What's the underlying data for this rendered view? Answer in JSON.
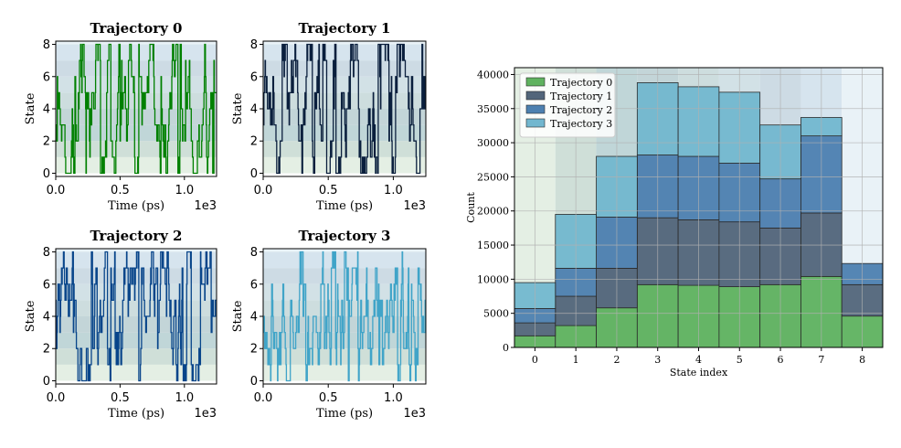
{
  "chart_data": [
    {
      "type": "line",
      "title": "Trajectory 0",
      "xlabel": "Time (ps)",
      "ylabel": "State",
      "x_offset_label": "1e3",
      "xlim": [
        0,
        1.25
      ],
      "ylim": [
        -0.2,
        8.2
      ],
      "xticks": [
        "0.0",
        "0.5",
        "1.0"
      ],
      "yticks": [
        "0",
        "2",
        "4",
        "6",
        "8"
      ],
      "color": "#008000",
      "seed": 11
    },
    {
      "type": "line",
      "title": "Trajectory 1",
      "xlabel": "Time (ps)",
      "ylabel": "State",
      "x_offset_label": "1e3",
      "xlim": [
        0,
        1.25
      ],
      "ylim": [
        -0.2,
        8.2
      ],
      "xticks": [
        "0.0",
        "0.5",
        "1.0"
      ],
      "yticks": [
        "0",
        "2",
        "4",
        "6",
        "8"
      ],
      "color": "#0a1f3d",
      "seed": 23
    },
    {
      "type": "line",
      "title": "Trajectory 2",
      "xlabel": "Time (ps)",
      "ylabel": "State",
      "x_offset_label": "1e3",
      "xlim": [
        0,
        1.25
      ],
      "ylim": [
        -0.2,
        8.2
      ],
      "xticks": [
        "0.0",
        "0.5",
        "1.0"
      ],
      "yticks": [
        "0",
        "2",
        "4",
        "6",
        "8"
      ],
      "color": "#08458a",
      "seed": 37
    },
    {
      "type": "line",
      "title": "Trajectory 3",
      "xlabel": "Time (ps)",
      "ylabel": "State",
      "x_offset_label": "1e3",
      "xlim": [
        0,
        1.25
      ],
      "ylim": [
        -0.2,
        8.2
      ],
      "xticks": [
        "0.0",
        "0.5",
        "1.0"
      ],
      "yticks": [
        "0",
        "2",
        "4",
        "6",
        "8"
      ],
      "color": "#40a4c8",
      "seed": 53
    },
    {
      "type": "bar",
      "stacked": true,
      "xlabel": "State index",
      "ylabel": "Count",
      "categories": [
        "0",
        "1",
        "2",
        "3",
        "4",
        "5",
        "6",
        "7",
        "8"
      ],
      "ylim": [
        0,
        41000
      ],
      "yticks": [
        0,
        5000,
        10000,
        15000,
        20000,
        25000,
        30000,
        35000,
        40000
      ],
      "grid": true,
      "legend_position": "top-left",
      "series": [
        {
          "name": "Trajectory 0",
          "color": "#5fb25f",
          "values": [
            1700,
            3200,
            5800,
            9200,
            9100,
            8900,
            9200,
            10400,
            4600
          ]
        },
        {
          "name": "Trajectory 1",
          "color": "#52657a",
          "values": [
            1900,
            4300,
            5800,
            9800,
            9600,
            9500,
            8300,
            9300,
            4600
          ]
        },
        {
          "name": "Trajectory 2",
          "color": "#4d80b0",
          "values": [
            2100,
            4100,
            7500,
            9200,
            9300,
            8600,
            7200,
            11300,
            3100
          ]
        },
        {
          "name": "Trajectory 3",
          "color": "#72b7cf",
          "values": [
            3800,
            7900,
            8900,
            10600,
            10200,
            10400,
            7900,
            2700,
            0
          ]
        }
      ]
    }
  ],
  "state_band_colors": [
    "#e4efe4",
    "#cfdfd8",
    "#c0d6d8",
    "#c3d5d8",
    "#cdddde",
    "#d2e1e6",
    "#cddbe4",
    "#d6e4ee",
    "#e9f2f7"
  ]
}
